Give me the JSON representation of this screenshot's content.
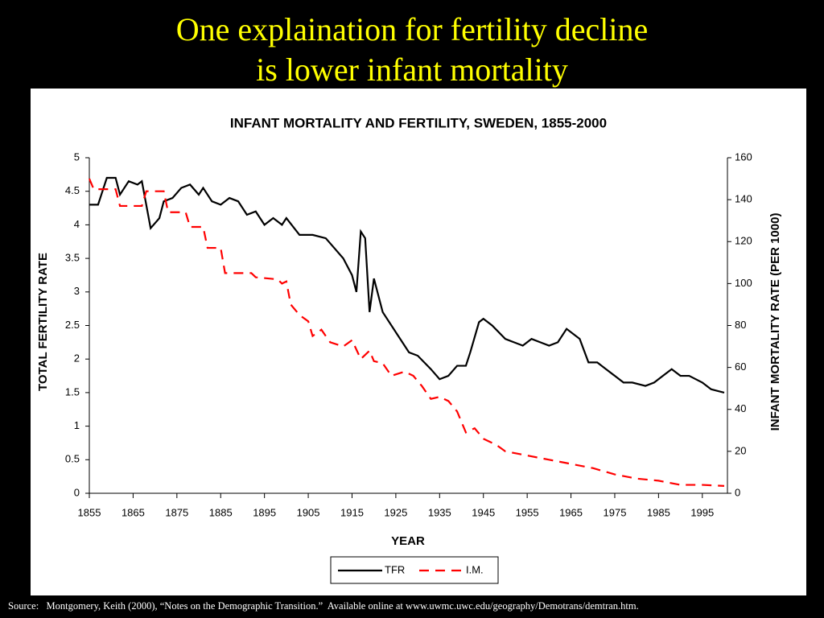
{
  "slide": {
    "title": [
      "One explaination for fertility decline",
      "is lower infant mortality"
    ],
    "source": "Source:   Montgomery, Keith (2000), “Notes on the Demographic Transition.”  Available online at www.uwmc.uwc.edu/geography/Demotrans/demtran.htm."
  },
  "chart_data": {
    "type": "line",
    "title": "INFANT MORTALITY AND FERTILITY, SWEDEN, 1855-2000",
    "x_label": "YEAR",
    "y_label": "TOTAL FERTILITY RATE",
    "y2_label": "INFANT MORTALITY RATE (PER 1000)",
    "xlim": [
      1855,
      2000
    ],
    "xticks": [
      1855,
      1865,
      1875,
      1885,
      1895,
      1905,
      1915,
      1925,
      1935,
      1945,
      1955,
      1965,
      1975,
      1985,
      1995
    ],
    "ylim": [
      0,
      5
    ],
    "yticks": [
      0,
      0.5,
      1,
      1.5,
      2,
      2.5,
      3,
      3.5,
      4,
      4.5,
      5
    ],
    "y2lim": [
      0,
      160
    ],
    "y2ticks": [
      0,
      20,
      40,
      60,
      80,
      100,
      120,
      140,
      160
    ],
    "legend": "bottom",
    "series": [
      {
        "name": "TFR",
        "color": "#000000",
        "line_style": "solid",
        "x": [
          1855,
          1857,
          1859,
          1861,
          1862,
          1864,
          1866,
          1867,
          1868,
          1869,
          1871,
          1872,
          1874,
          1876,
          1878,
          1880,
          1881,
          1883,
          1885,
          1887,
          1889,
          1891,
          1893,
          1895,
          1897,
          1899,
          1900,
          1903,
          1906,
          1909,
          1911,
          1913,
          1915,
          1916,
          1917,
          1918,
          1919,
          1920,
          1922,
          1925,
          1928,
          1930,
          1933,
          1935,
          1937,
          1939,
          1941,
          1942,
          1944,
          1945,
          1947,
          1950,
          1952,
          1954,
          1956,
          1958,
          1960,
          1962,
          1964,
          1966,
          1967,
          1969,
          1971,
          1973,
          1975,
          1977,
          1979,
          1982,
          1984,
          1986,
          1988,
          1990,
          1992,
          1995,
          1997,
          2000
        ],
        "values": [
          4.3,
          4.3,
          4.7,
          4.7,
          4.45,
          4.65,
          4.6,
          4.65,
          4.3,
          3.95,
          4.1,
          4.35,
          4.4,
          4.55,
          4.6,
          4.45,
          4.55,
          4.35,
          4.3,
          4.4,
          4.35,
          4.15,
          4.2,
          4.0,
          4.1,
          4.0,
          4.1,
          3.85,
          3.85,
          3.8,
          3.65,
          3.5,
          3.25,
          3.0,
          3.9,
          3.8,
          2.7,
          3.2,
          2.7,
          2.4,
          2.1,
          2.05,
          1.85,
          1.7,
          1.75,
          1.9,
          1.9,
          2.1,
          2.55,
          2.6,
          2.5,
          2.3,
          2.25,
          2.2,
          2.3,
          2.25,
          2.2,
          2.25,
          2.45,
          2.35,
          2.3,
          1.95,
          1.95,
          1.85,
          1.75,
          1.65,
          1.65,
          1.6,
          1.65,
          1.75,
          1.85,
          1.75,
          1.75,
          1.65,
          1.55,
          1.5
        ]
      },
      {
        "name": "I.M.",
        "color": "#ff0000",
        "line_style": "dashed",
        "axis": "y2",
        "x": [
          1855,
          1856,
          1861,
          1862,
          1867,
          1868,
          1872,
          1873,
          1877,
          1878,
          1881,
          1882,
          1885,
          1886,
          1892,
          1893,
          1898,
          1899,
          1900,
          1901,
          1903,
          1905,
          1906,
          1908,
          1910,
          1913,
          1915,
          1917,
          1919,
          1920,
          1922,
          1924,
          1927,
          1929,
          1931,
          1933,
          1935,
          1937,
          1939,
          1941,
          1943,
          1945,
          1948,
          1950,
          1955,
          1960,
          1965,
          1970,
          1975,
          1980,
          1985,
          1990,
          1995,
          2000
        ],
        "values": [
          150,
          145,
          145,
          137,
          137,
          144,
          144,
          134,
          134,
          127,
          127,
          117,
          117,
          105,
          105,
          103,
          102,
          100,
          101,
          90,
          85,
          82,
          75,
          78,
          72,
          70,
          73,
          64,
          68,
          63,
          62,
          56,
          58,
          56,
          51,
          45,
          46,
          44,
          39,
          29,
          31,
          26,
          23,
          20,
          18,
          16,
          14,
          12,
          9,
          7,
          6,
          4,
          4,
          3.5
        ]
      }
    ]
  }
}
